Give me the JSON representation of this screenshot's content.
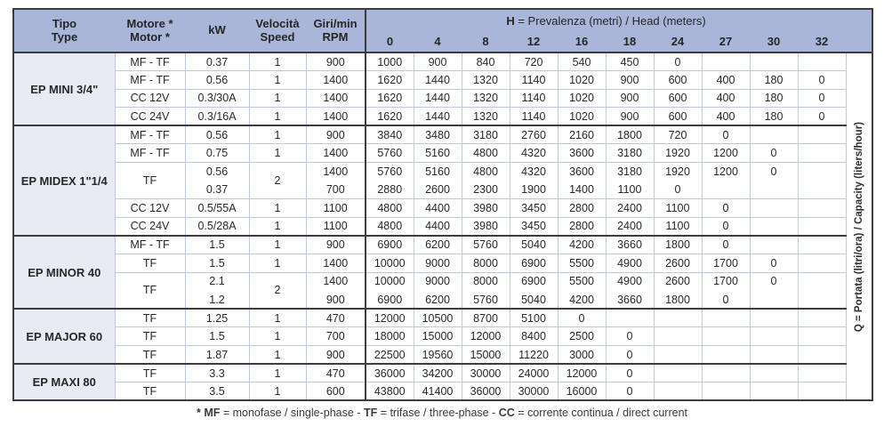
{
  "colors": {
    "header_bg": "#a9b6d9",
    "type_column_bg": "#e9ebf4",
    "grid_light": "#bccadf",
    "grid_dark": "#3c3c3c"
  },
  "header": {
    "col1": [
      "Tipo",
      "Type"
    ],
    "col2": [
      "Motore *",
      "Motor *"
    ],
    "col3": [
      "kW"
    ],
    "col4": [
      "Velocità",
      "Speed"
    ],
    "col5": [
      "Giri/min",
      "RPM"
    ],
    "h_label_bold": "H",
    "h_label_rest": " = Prevalenza (metri) / Head (meters)",
    "h_ticks": [
      "0",
      "4",
      "8",
      "12",
      "16",
      "18",
      "24",
      "27",
      "30",
      "32"
    ]
  },
  "side_label": {
    "bold": "Q",
    "rest": " = Portata (litri/ora) / Capacity (liters/hour)"
  },
  "footnote": [
    {
      "text": "* MF",
      "bold": true
    },
    {
      "text": " = monofase / single-phase - "
    },
    {
      "text": "TF",
      "bold": true
    },
    {
      "text": " = trifase / three-phase - "
    },
    {
      "text": "CC",
      "bold": true
    },
    {
      "text": " = corrente continua / direct current"
    }
  ],
  "groups": [
    {
      "type": "EP MINI 3/4\"",
      "rows": [
        {
          "motor": "MF - TF",
          "kw": "0.37",
          "speed": "1",
          "rpm": "900",
          "q": [
            "1000",
            "900",
            "840",
            "720",
            "540",
            "450",
            "0",
            "",
            "",
            ""
          ]
        },
        {
          "motor": "MF - TF",
          "kw": "0.56",
          "speed": "1",
          "rpm": "1400",
          "q": [
            "1620",
            "1440",
            "1320",
            "1140",
            "1020",
            "900",
            "600",
            "400",
            "180",
            "0"
          ]
        },
        {
          "motor": "CC 12V",
          "kw": "0.3/30A",
          "speed": "1",
          "rpm": "1400",
          "q": [
            "1620",
            "1440",
            "1320",
            "1140",
            "1020",
            "900",
            "600",
            "400",
            "180",
            "0"
          ]
        },
        {
          "motor": "CC 24V",
          "kw": "0.3/16A",
          "speed": "1",
          "rpm": "1400",
          "q": [
            "1620",
            "1440",
            "1320",
            "1140",
            "1020",
            "900",
            "600",
            "400",
            "180",
            "0"
          ]
        }
      ]
    },
    {
      "type": "EP MIDEX 1\"1/4",
      "rows": [
        {
          "motor": "MF - TF",
          "kw": "0.56",
          "speed": "1",
          "rpm": "900",
          "q": [
            "3840",
            "3480",
            "3180",
            "2760",
            "2160",
            "1800",
            "720",
            "0",
            "",
            ""
          ]
        },
        {
          "motor": "MF - TF",
          "kw": "0.75",
          "speed": "1",
          "rpm": "1400",
          "q": [
            "5760",
            "5160",
            "4800",
            "4320",
            "3600",
            "3180",
            "1920",
            "1200",
            "0",
            ""
          ]
        },
        {
          "motor": "TF",
          "kw": "0.56",
          "speed": "2",
          "rpm": "1400",
          "merge": "start",
          "q": [
            "5760",
            "5160",
            "4800",
            "4320",
            "3600",
            "3180",
            "1920",
            "1200",
            "0",
            ""
          ]
        },
        {
          "kw": "0.37",
          "rpm": "700",
          "merge": "cont",
          "q": [
            "2880",
            "2600",
            "2300",
            "1900",
            "1400",
            "1100",
            "0",
            "",
            "",
            ""
          ]
        },
        {
          "motor": "CC 12V",
          "kw": "0.5/55A",
          "speed": "1",
          "rpm": "1100",
          "q": [
            "4800",
            "4400",
            "3980",
            "3450",
            "2800",
            "2400",
            "1100",
            "0",
            "",
            ""
          ]
        },
        {
          "motor": "CC 24V",
          "kw": "0.5/28A",
          "speed": "1",
          "rpm": "1100",
          "q": [
            "4800",
            "4400",
            "3980",
            "3450",
            "2800",
            "2400",
            "1100",
            "0",
            "",
            ""
          ]
        }
      ]
    },
    {
      "type": "EP MINOR 40",
      "rows": [
        {
          "motor": "MF - TF",
          "kw": "1.5",
          "speed": "1",
          "rpm": "900",
          "q": [
            "6900",
            "6200",
            "5760",
            "5040",
            "4200",
            "3660",
            "1800",
            "0",
            "",
            ""
          ]
        },
        {
          "motor": "TF",
          "kw": "1.5",
          "speed": "1",
          "rpm": "1400",
          "q": [
            "10000",
            "9000",
            "8000",
            "6900",
            "5500",
            "4900",
            "2600",
            "1700",
            "0",
            ""
          ]
        },
        {
          "motor": "TF",
          "kw": "2.1",
          "speed": "2",
          "rpm": "1400",
          "merge": "start",
          "q": [
            "10000",
            "9000",
            "8000",
            "6900",
            "5500",
            "4900",
            "2600",
            "1700",
            "0",
            ""
          ]
        },
        {
          "kw": "1.2",
          "rpm": "900",
          "merge": "cont",
          "q": [
            "6900",
            "6200",
            "5760",
            "5040",
            "4200",
            "3660",
            "1800",
            "0",
            "",
            ""
          ]
        }
      ]
    },
    {
      "type": "EP MAJOR 60",
      "rows": [
        {
          "motor": "TF",
          "kw": "1.25",
          "speed": "1",
          "rpm": "470",
          "q": [
            "12000",
            "10500",
            "8700",
            "5100",
            "0",
            "",
            "",
            "",
            "",
            ""
          ]
        },
        {
          "motor": "TF",
          "kw": "1.5",
          "speed": "1",
          "rpm": "700",
          "q": [
            "18000",
            "15000",
            "12000",
            "8400",
            "2500",
            "0",
            "",
            "",
            "",
            ""
          ]
        },
        {
          "motor": "TF",
          "kw": "1.87",
          "speed": "1",
          "rpm": "900",
          "q": [
            "22500",
            "19560",
            "15000",
            "11220",
            "3000",
            "0",
            "",
            "",
            "",
            ""
          ]
        }
      ]
    },
    {
      "type": "EP MAXI 80",
      "rows": [
        {
          "motor": "TF",
          "kw": "3.3",
          "speed": "1",
          "rpm": "470",
          "q": [
            "36000",
            "34200",
            "30000",
            "24000",
            "12000",
            "0",
            "",
            "",
            "",
            ""
          ]
        },
        {
          "motor": "TF",
          "kw": "3.5",
          "speed": "1",
          "rpm": "600",
          "q": [
            "43800",
            "41400",
            "36000",
            "30000",
            "16000",
            "0",
            "",
            "",
            "",
            ""
          ]
        }
      ]
    }
  ]
}
